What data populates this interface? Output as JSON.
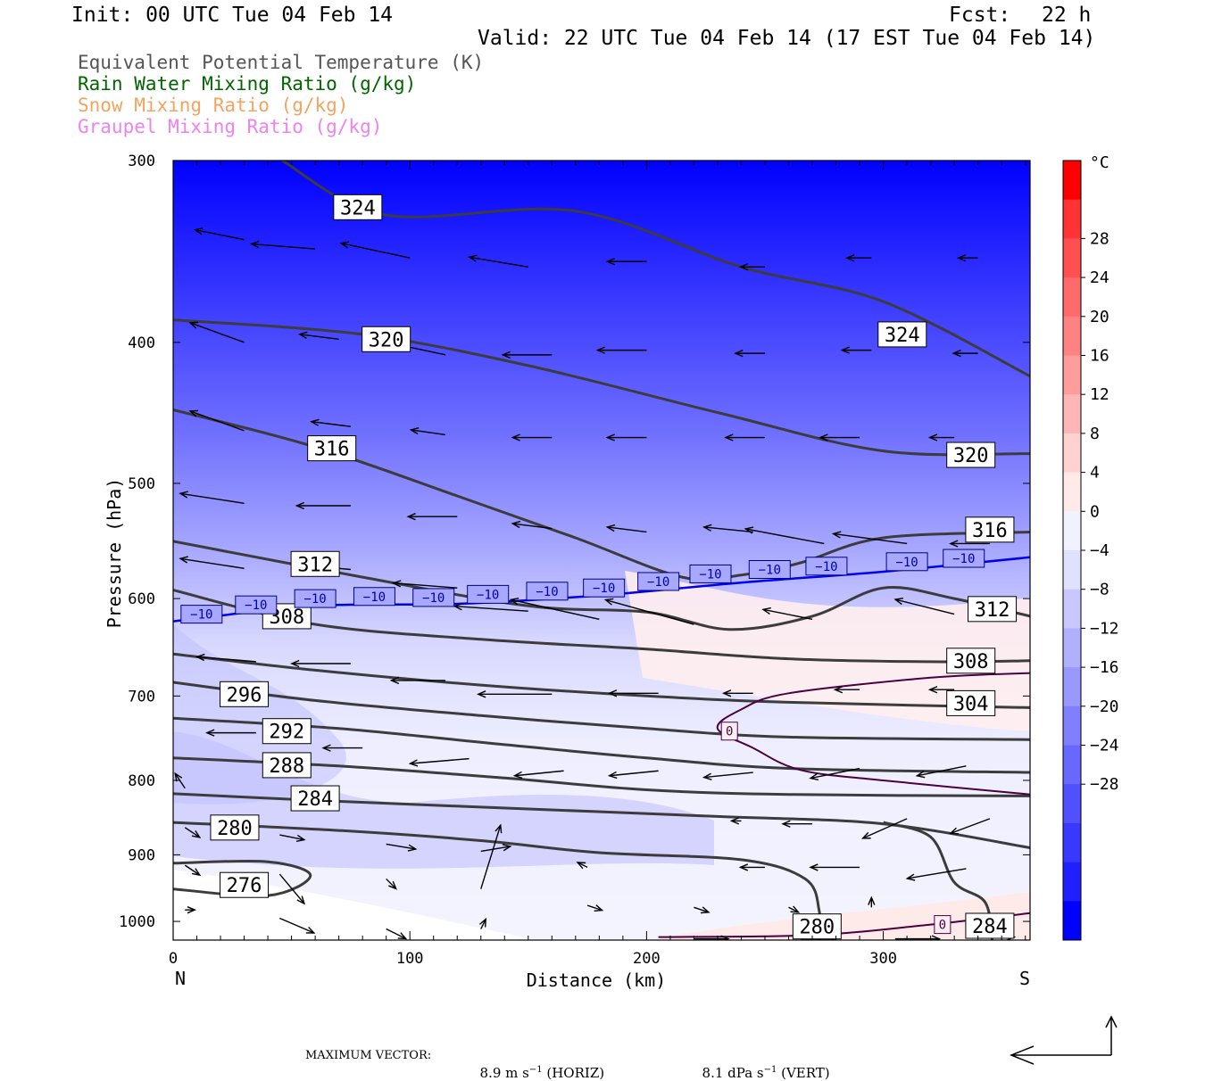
{
  "header": {
    "init": "Init: 00 UTC Tue 04 Feb 14",
    "fcst_label": "Fcst:",
    "fcst_value": "22 h",
    "valid": "Valid: 22 UTC Tue 04 Feb 14 (17 EST Tue 04 Feb 14)"
  },
  "legend": [
    {
      "text": "Equivalent Potential Temperature (K)",
      "color": "#555555"
    },
    {
      "text": "Rain Water Mixing Ratio (g/kg)",
      "color": "#006400"
    },
    {
      "text": "Snow Mixing Ratio (g/kg)",
      "color": "#f4a460"
    },
    {
      "text": "Graupel Mixing Ratio (g/kg)",
      "color": "#ee82ee"
    }
  ],
  "footer": {
    "max_vector_label": "MAXIMUM VECTOR:",
    "horiz_value": "8.9 m s",
    "horiz_exp": "−1",
    "horiz_suffix": " (HORIZ)",
    "vert_value": "8.1 dPa s",
    "vert_exp": "−1",
    "vert_suffix": " (VERT)"
  },
  "chart_data": {
    "type": "contour",
    "xlabel": "Distance (km)",
    "ylabel": "Pressure (hPa)",
    "xlim": [
      0,
      362
    ],
    "ylim": [
      1030,
      300
    ],
    "x_ticks": [
      0,
      100,
      200,
      300
    ],
    "y_ticks": [
      300,
      400,
      500,
      600,
      700,
      800,
      900,
      1000
    ],
    "x_end_labels": {
      "left": "N",
      "right": "S"
    },
    "colorbar": {
      "unit": "°C",
      "tick_values": [
        28,
        24,
        20,
        16,
        12,
        8,
        4,
        0,
        -4,
        -8,
        -12,
        -16,
        -20,
        -24,
        -28
      ],
      "tick_labels": [
        "28",
        "24",
        "20",
        "16",
        "12",
        "8",
        "4",
        "0",
        "−4",
        "−8",
        "−12",
        "−16",
        "−20",
        "−24",
        "−28"
      ],
      "colors": [
        "#ff0000",
        "#ff3333",
        "#ff5050",
        "#ff6a6a",
        "#ff8282",
        "#ff9c9c",
        "#ffb6b6",
        "#ffd2d2",
        "#ffeaea",
        "#f2f2ff",
        "#e0e0ff",
        "#c8c8ff",
        "#b0b0ff",
        "#9898ff",
        "#8080ff",
        "#6868ff",
        "#5050ff",
        "#3838ff",
        "#2020ff",
        "#0000ff"
      ]
    },
    "theta_e_contours": [
      {
        "level": 324,
        "points": [
          [
            46,
            300
          ],
          [
            90,
            327
          ],
          [
            170,
            325
          ],
          [
            240,
            355
          ],
          [
            300,
            375
          ],
          [
            362,
            422
          ]
        ]
      },
      {
        "level": 320,
        "points": [
          [
            0,
            386
          ],
          [
            80,
            395
          ],
          [
            150,
            415
          ],
          [
            230,
            447
          ],
          [
            300,
            475
          ],
          [
            362,
            477
          ]
        ]
      },
      {
        "level": 316,
        "points": [
          [
            0,
            445
          ],
          [
            60,
            472
          ],
          [
            120,
            510
          ],
          [
            170,
            545
          ],
          [
            215,
            580
          ],
          [
            240,
            578
          ],
          [
            265,
            567
          ],
          [
            300,
            545
          ],
          [
            362,
            540
          ]
        ]
      },
      {
        "level": 312,
        "points": [
          [
            0,
            548
          ],
          [
            80,
            580
          ],
          [
            150,
            607
          ],
          [
            200,
            613
          ],
          [
            235,
            630
          ],
          [
            270,
            617
          ],
          [
            300,
            590
          ],
          [
            330,
            600
          ],
          [
            362,
            617
          ]
        ]
      },
      {
        "level": 308,
        "points": [
          [
            0,
            592
          ],
          [
            60,
            625
          ],
          [
            130,
            640
          ],
          [
            200,
            650
          ],
          [
            260,
            660
          ],
          [
            320,
            663
          ],
          [
            362,
            662
          ]
        ]
      },
      {
        "level": 304,
        "points": [
          [
            0,
            655
          ],
          [
            60,
            672
          ],
          [
            130,
            688
          ],
          [
            200,
            700
          ],
          [
            260,
            707
          ],
          [
            362,
            713
          ]
        ]
      },
      {
        "level": 296,
        "points": [
          [
            0,
            685
          ],
          [
            60,
            705
          ],
          [
            130,
            722
          ],
          [
            200,
            737
          ],
          [
            260,
            747
          ],
          [
            362,
            750
          ]
        ]
      },
      {
        "level": 292,
        "points": [
          [
            0,
            725
          ],
          [
            70,
            737
          ],
          [
            140,
            756
          ],
          [
            200,
            772
          ],
          [
            260,
            785
          ],
          [
            362,
            790
          ]
        ]
      },
      {
        "level": 288,
        "points": [
          [
            0,
            772
          ],
          [
            70,
            782
          ],
          [
            140,
            797
          ],
          [
            200,
            812
          ],
          [
            260,
            818
          ],
          [
            362,
            820
          ]
        ]
      },
      {
        "level": 284,
        "points": [
          [
            0,
            817
          ],
          [
            70,
            827
          ],
          [
            150,
            837
          ],
          [
            230,
            847
          ],
          [
            300,
            857
          ],
          [
            362,
            890
          ]
        ]
      },
      {
        "level": 280,
        "points": [
          [
            0,
            855
          ],
          [
            70,
            866
          ],
          [
            130,
            880
          ],
          [
            180,
            897
          ],
          [
            240,
            907
          ],
          [
            267,
            935
          ],
          [
            273,
            985
          ],
          [
            273,
            1030
          ]
        ]
      },
      {
        "level": 284,
        "points": [
          [
            300,
            855
          ],
          [
            320,
            875
          ],
          [
            330,
            940
          ],
          [
            343,
            970
          ],
          [
            346,
            1030
          ]
        ]
      },
      {
        "level": 276,
        "points": [
          [
            0,
            912
          ],
          [
            40,
            910
          ],
          [
            58,
            930
          ],
          [
            40,
            960
          ],
          [
            0,
            950
          ]
        ]
      }
    ],
    "isotherm_minus10": {
      "level": -10,
      "points": [
        [
          0,
          622
        ],
        [
          60,
          607
        ],
        [
          120,
          605
        ],
        [
          180,
          597
        ],
        [
          240,
          585
        ],
        [
          300,
          575
        ],
        [
          362,
          562
        ]
      ]
    },
    "isotherm_zero": [
      {
        "level": 0,
        "points": [
          [
            362,
            675
          ],
          [
            320,
            680
          ],
          [
            260,
            697
          ],
          [
            240,
            715
          ],
          [
            230,
            737
          ],
          [
            245,
            760
          ],
          [
            265,
            787
          ],
          [
            300,
            800
          ],
          [
            362,
            818
          ]
        ]
      },
      {
        "level": 0,
        "points": [
          [
            205,
            1025
          ],
          [
            270,
            1022
          ],
          [
            320,
            1005
          ],
          [
            362,
            987
          ]
        ]
      }
    ],
    "contour_label_positions": [
      {
        "text": "324",
        "x": 78,
        "y": 323
      },
      {
        "text": "324",
        "x": 308,
        "y": 395
      },
      {
        "text": "320",
        "x": 90,
        "y": 398
      },
      {
        "text": "320",
        "x": 337,
        "y": 478
      },
      {
        "text": "316",
        "x": 67,
        "y": 473
      },
      {
        "text": "316",
        "x": 345,
        "y": 538
      },
      {
        "text": "312",
        "x": 60,
        "y": 568
      },
      {
        "text": "312",
        "x": 346,
        "y": 610
      },
      {
        "text": "308",
        "x": 48,
        "y": 617
      },
      {
        "text": "308",
        "x": 337,
        "y": 662
      },
      {
        "text": "304",
        "x": 337,
        "y": 708
      },
      {
        "text": "296",
        "x": 30,
        "y": 698
      },
      {
        "text": "292",
        "x": 48,
        "y": 740
      },
      {
        "text": "288",
        "x": 48,
        "y": 781
      },
      {
        "text": "284",
        "x": 60,
        "y": 823
      },
      {
        "text": "284",
        "x": 345,
        "y": 1007
      },
      {
        "text": "280",
        "x": 26,
        "y": 862
      },
      {
        "text": "280",
        "x": 272,
        "y": 1008
      },
      {
        "text": "276",
        "x": 30,
        "y": 944
      }
    ],
    "isotherm_labels": [
      {
        "text": "−10",
        "x": 12,
        "y": 615
      },
      {
        "text": "−10",
        "x": 35,
        "y": 606
      },
      {
        "text": "−10",
        "x": 60,
        "y": 600
      },
      {
        "text": "−10",
        "x": 85,
        "y": 598
      },
      {
        "text": "−10",
        "x": 110,
        "y": 599
      },
      {
        "text": "−10",
        "x": 133,
        "y": 596
      },
      {
        "text": "−10",
        "x": 158,
        "y": 593
      },
      {
        "text": "−10",
        "x": 182,
        "y": 590
      },
      {
        "text": "−10",
        "x": 205,
        "y": 584
      },
      {
        "text": "−10",
        "x": 227,
        "y": 577
      },
      {
        "text": "−10",
        "x": 252,
        "y": 573
      },
      {
        "text": "−10",
        "x": 276,
        "y": 570
      },
      {
        "text": "−10",
        "x": 310,
        "y": 566
      },
      {
        "text": "−10",
        "x": 334,
        "y": 563
      },
      {
        "text": "0",
        "x": 235,
        "y": 740
      },
      {
        "text": "0",
        "x": 325,
        "y": 1005
      }
    ],
    "wind_vectors": [
      {
        "x": 30,
        "y": 340,
        "u": -1.0,
        "w": 0.2
      },
      {
        "x": 60,
        "y": 345,
        "u": -1.3,
        "w": 0.1
      },
      {
        "x": 100,
        "y": 350,
        "u": -1.4,
        "w": 0.3
      },
      {
        "x": 150,
        "y": 355,
        "u": -1.2,
        "w": 0.2
      },
      {
        "x": 200,
        "y": 352,
        "u": -0.8,
        "w": 0.0
      },
      {
        "x": 250,
        "y": 355,
        "u": -0.5,
        "w": 0.0
      },
      {
        "x": 295,
        "y": 350,
        "u": -0.5,
        "w": 0.0
      },
      {
        "x": 340,
        "y": 350,
        "u": -0.4,
        "w": 0.0
      },
      {
        "x": 30,
        "y": 400,
        "u": -1.1,
        "w": 0.4
      },
      {
        "x": 70,
        "y": 398,
        "u": -0.8,
        "w": 0.1
      },
      {
        "x": 115,
        "y": 408,
        "u": -1.4,
        "w": 0.3
      },
      {
        "x": 160,
        "y": 408,
        "u": -1.0,
        "w": 0.0
      },
      {
        "x": 200,
        "y": 405,
        "u": -1.0,
        "w": 0.0
      },
      {
        "x": 250,
        "y": 407,
        "u": -0.6,
        "w": 0.0
      },
      {
        "x": 295,
        "y": 405,
        "u": -0.6,
        "w": 0.0
      },
      {
        "x": 340,
        "y": 407,
        "u": -0.5,
        "w": 0.0
      },
      {
        "x": 30,
        "y": 460,
        "u": -1.1,
        "w": 0.4
      },
      {
        "x": 75,
        "y": 457,
        "u": -0.8,
        "w": 0.1
      },
      {
        "x": 115,
        "y": 463,
        "u": -0.7,
        "w": 0.1
      },
      {
        "x": 160,
        "y": 465,
        "u": -0.8,
        "w": 0.0
      },
      {
        "x": 200,
        "y": 465,
        "u": -0.8,
        "w": 0.0
      },
      {
        "x": 250,
        "y": 465,
        "u": -0.8,
        "w": 0.0
      },
      {
        "x": 290,
        "y": 465,
        "u": -0.8,
        "w": 0.0
      },
      {
        "x": 330,
        "y": 465,
        "u": -0.5,
        "w": 0.0
      },
      {
        "x": 30,
        "y": 516,
        "u": -1.3,
        "w": 0.2
      },
      {
        "x": 75,
        "y": 518,
        "u": -1.1,
        "w": 0.0
      },
      {
        "x": 120,
        "y": 527,
        "u": -1.0,
        "w": 0.0
      },
      {
        "x": 160,
        "y": 537,
        "u": -0.8,
        "w": 0.1
      },
      {
        "x": 200,
        "y": 540,
        "u": -0.8,
        "w": 0.1
      },
      {
        "x": 245,
        "y": 540,
        "u": -1.0,
        "w": 0.1
      },
      {
        "x": 275,
        "y": 550,
        "u": -1.6,
        "w": 0.3
      },
      {
        "x": 310,
        "y": 550,
        "u": -1.5,
        "w": 0.2
      },
      {
        "x": 345,
        "y": 550,
        "u": -0.8,
        "w": 0.0
      },
      {
        "x": 30,
        "y": 572,
        "u": -1.3,
        "w": 0.2
      },
      {
        "x": 75,
        "y": 573,
        "u": -1.1,
        "w": 0.1
      },
      {
        "x": 120,
        "y": 590,
        "u": -1.3,
        "w": 0.1
      },
      {
        "x": 150,
        "y": 612,
        "u": -1.5,
        "w": 0.1
      },
      {
        "x": 180,
        "y": 620,
        "u": -1.8,
        "w": 0.4
      },
      {
        "x": 220,
        "y": 625,
        "u": -1.8,
        "w": 0.5
      },
      {
        "x": 270,
        "y": 620,
        "u": -1.0,
        "w": 0.2
      },
      {
        "x": 330,
        "y": 615,
        "u": -1.2,
        "w": 0.3
      },
      {
        "x": 35,
        "y": 663,
        "u": -1.2,
        "w": 0.1
      },
      {
        "x": 75,
        "y": 665,
        "u": -1.2,
        "w": 0.0
      },
      {
        "x": 115,
        "y": 683,
        "u": -1.1,
        "w": 0.0
      },
      {
        "x": 160,
        "y": 698,
        "u": -1.5,
        "w": 0.0
      },
      {
        "x": 205,
        "y": 697,
        "u": -1.0,
        "w": 0.0
      },
      {
        "x": 245,
        "y": 697,
        "u": -0.6,
        "w": 0.0
      },
      {
        "x": 290,
        "y": 693,
        "u": -0.5,
        "w": 0.0
      },
      {
        "x": 330,
        "y": 693,
        "u": -0.5,
        "w": 0.0
      },
      {
        "x": 35,
        "y": 742,
        "u": -1.0,
        "w": 0.0
      },
      {
        "x": 80,
        "y": 760,
        "u": -0.8,
        "w": 0.0
      },
      {
        "x": 125,
        "y": 773,
        "u": -1.2,
        "w": -0.1
      },
      {
        "x": 165,
        "y": 788,
        "u": -1.0,
        "w": -0.1
      },
      {
        "x": 205,
        "y": 788,
        "u": -1.0,
        "w": -0.1
      },
      {
        "x": 245,
        "y": 790,
        "u": -1.0,
        "w": -0.1
      },
      {
        "x": 290,
        "y": 785,
        "u": -1.0,
        "w": -0.2
      },
      {
        "x": 335,
        "y": 782,
        "u": -1.0,
        "w": -0.2
      },
      {
        "x": 5,
        "y": 810,
        "u": -0.2,
        "w": 0.3
      },
      {
        "x": 270,
        "y": 857,
        "u": -0.6,
        "w": 0.0
      },
      {
        "x": 310,
        "y": 850,
        "u": -0.9,
        "w": -0.4
      },
      {
        "x": 345,
        "y": 850,
        "u": -0.8,
        "w": -0.3
      },
      {
        "x": 240,
        "y": 853,
        "u": -0.2,
        "w": 0.0
      },
      {
        "x": 5,
        "y": 862,
        "u": 0.3,
        "w": -0.2
      },
      {
        "x": 45,
        "y": 872,
        "u": 0.5,
        "w": -0.1
      },
      {
        "x": 90,
        "y": 885,
        "u": 0.6,
        "w": -0.1
      },
      {
        "x": 130,
        "y": 895,
        "u": 0.6,
        "w": 0.1
      },
      {
        "x": 130,
        "y": 950,
        "u": 0.4,
        "w": 1.3
      },
      {
        "x": 5,
        "y": 915,
        "u": 0.3,
        "w": -0.2
      },
      {
        "x": 45,
        "y": 928,
        "u": 0.5,
        "w": -0.6
      },
      {
        "x": 90,
        "y": 935,
        "u": 0.2,
        "w": -0.2
      },
      {
        "x": 175,
        "y": 918,
        "u": -0.2,
        "w": 0.1
      },
      {
        "x": 250,
        "y": 918,
        "u": -0.5,
        "w": 0.0
      },
      {
        "x": 290,
        "y": 918,
        "u": -1.0,
        "w": 0.0
      },
      {
        "x": 335,
        "y": 920,
        "u": -1.2,
        "w": -0.2
      },
      {
        "x": 5,
        "y": 982,
        "u": 0.2,
        "w": 0.0
      },
      {
        "x": 45,
        "y": 995,
        "u": 0.7,
        "w": -0.3
      },
      {
        "x": 90,
        "y": 1012,
        "u": 0.4,
        "w": -0.2
      },
      {
        "x": 130,
        "y": 1012,
        "u": 0.1,
        "w": 0.2
      },
      {
        "x": 175,
        "y": 975,
        "u": 0.3,
        "w": -0.1
      },
      {
        "x": 220,
        "y": 978,
        "u": 0.3,
        "w": -0.1
      },
      {
        "x": 260,
        "y": 978,
        "u": 0.2,
        "w": -0.1
      },
      {
        "x": 295,
        "y": 978,
        "u": 0.0,
        "w": 0.2
      },
      {
        "x": 220,
        "y": 1028,
        "u": 0.7,
        "w": 0.0
      },
      {
        "x": 265,
        "y": 1028,
        "u": 0.7,
        "w": 0.0
      },
      {
        "x": 305,
        "y": 1028,
        "u": 0.9,
        "w": 0.0
      },
      {
        "x": 345,
        "y": 1025,
        "u": 0.5,
        "w": 0.0
      }
    ]
  }
}
